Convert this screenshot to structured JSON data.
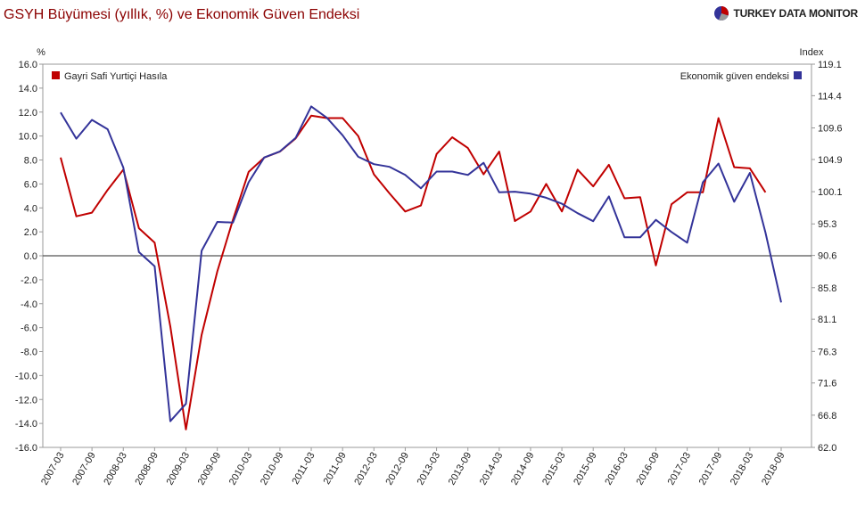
{
  "page": {
    "title": "GSYH Büyümesi (yıllık, %) ve Ekonomik Güven Endeksi",
    "brand": "TURKEY DATA MONITOR"
  },
  "colors": {
    "gdp": "#c00000",
    "confidence": "#333399",
    "title": "#8b0000"
  },
  "chart_data": {
    "type": "line",
    "title": "GSYH Büyümesi (yıllık, %) ve Ekonomik Güven Endeksi",
    "ylabel": "%",
    "y2label": "Index",
    "ylim": [
      -16,
      16
    ],
    "y2lim": [
      62,
      119.1
    ],
    "yticks": [
      "16.0",
      "14.0",
      "12.0",
      "10.0",
      "8.0",
      "6.0",
      "4.0",
      "2.0",
      "0.0",
      "-2.0",
      "-4.0",
      "-6.0",
      "-8.0",
      "-10.0",
      "-12.0",
      "-14.0",
      "-16.0"
    ],
    "y2ticks": [
      "119.1",
      "114.4",
      "109.6",
      "104.9",
      "100.1",
      "95.3",
      "90.6",
      "85.8",
      "81.1",
      "76.3",
      "71.6",
      "66.8",
      "62.0"
    ],
    "xticks": [
      "2007-03",
      "2007-09",
      "2008-03",
      "2008-09",
      "2009-03",
      "2009-09",
      "2010-03",
      "2010-09",
      "2011-03",
      "2011-09",
      "2012-03",
      "2012-09",
      "2013-03",
      "2013-09",
      "2014-03",
      "2014-09",
      "2015-03",
      "2015-09",
      "2016-03",
      "2016-09",
      "2017-03",
      "2017-09",
      "2018-03",
      "2018-09"
    ],
    "x": [
      "2007-03",
      "2007-06",
      "2007-09",
      "2007-12",
      "2008-03",
      "2008-06",
      "2008-09",
      "2008-12",
      "2009-03",
      "2009-06",
      "2009-09",
      "2009-12",
      "2010-03",
      "2010-06",
      "2010-09",
      "2010-12",
      "2011-03",
      "2011-06",
      "2011-09",
      "2011-12",
      "2012-03",
      "2012-06",
      "2012-09",
      "2012-12",
      "2013-03",
      "2013-06",
      "2013-09",
      "2013-12",
      "2014-03",
      "2014-06",
      "2014-09",
      "2014-12",
      "2015-03",
      "2015-06",
      "2015-09",
      "2015-12",
      "2016-03",
      "2016-06",
      "2016-09",
      "2016-12",
      "2017-03",
      "2017-06",
      "2017-09",
      "2017-12",
      "2018-03",
      "2018-06",
      "2018-09"
    ],
    "legend": {
      "left": "Gayri Safi Yurtiçi Hasıla",
      "right": "Ekonomik güven endeksi"
    },
    "series": [
      {
        "name": "Gayri Safi Yurtiçi Hasıla",
        "axis": "left",
        "values": [
          8.2,
          3.3,
          3.6,
          5.5,
          7.2,
          2.3,
          1.1,
          -5.9,
          -14.5,
          -6.6,
          -1.3,
          3.0,
          7.0,
          8.2,
          8.7,
          9.8,
          11.7,
          11.5,
          11.5,
          10.0,
          6.8,
          5.2,
          3.7,
          4.2,
          8.5,
          9.9,
          9.0,
          6.8,
          8.7,
          2.9,
          3.7,
          6.0,
          3.7,
          7.2,
          5.8,
          7.6,
          4.8,
          4.9,
          -0.8,
          4.3,
          5.3,
          5.3,
          11.5,
          7.4,
          7.3,
          5.3,
          null
        ]
      },
      {
        "name": "Ekonomik güven endeksi",
        "axis": "right",
        "values": [
          111.9,
          108.0,
          110.8,
          109.4,
          103.7,
          91.1,
          89.0,
          65.9,
          68.5,
          91.3,
          95.6,
          95.5,
          101.5,
          105.2,
          106.1,
          108.1,
          112.8,
          111.1,
          108.5,
          105.3,
          104.2,
          103.8,
          102.6,
          100.6,
          103.1,
          103.1,
          102.6,
          104.4,
          100.0,
          100.1,
          99.8,
          99.2,
          98.3,
          96.9,
          95.7,
          99.4,
          93.3,
          93.3,
          95.9,
          94.1,
          92.5,
          101.5,
          104.3,
          98.6,
          102.9,
          94.0,
          83.6
        ]
      }
    ]
  }
}
